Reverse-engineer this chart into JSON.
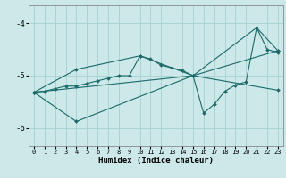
{
  "title": "",
  "xlabel": "Humidex (Indice chaleur)",
  "bg_color": "#cce8e8",
  "line_color": "#1a6b6b",
  "grid_color": "#aad4d4",
  "xlim": [
    -0.5,
    23.5
  ],
  "ylim": [
    -6.35,
    -3.65
  ],
  "yticks": [
    -6,
    -5,
    -4
  ],
  "xticks": [
    0,
    1,
    2,
    3,
    4,
    5,
    6,
    7,
    8,
    9,
    10,
    11,
    12,
    13,
    14,
    15,
    16,
    17,
    18,
    19,
    20,
    21,
    22,
    23
  ],
  "series1": [
    [
      0,
      -5.32
    ],
    [
      1,
      -5.3
    ],
    [
      2,
      -5.25
    ],
    [
      3,
      -5.2
    ],
    [
      4,
      -5.2
    ],
    [
      5,
      -5.15
    ],
    [
      6,
      -5.1
    ],
    [
      7,
      -5.05
    ],
    [
      8,
      -5.0
    ],
    [
      9,
      -5.0
    ],
    [
      10,
      -4.62
    ],
    [
      11,
      -4.68
    ],
    [
      12,
      -4.8
    ],
    [
      13,
      -4.85
    ],
    [
      14,
      -4.9
    ],
    [
      15,
      -5.0
    ],
    [
      16,
      -5.72
    ],
    [
      17,
      -5.55
    ],
    [
      18,
      -5.3
    ],
    [
      19,
      -5.18
    ],
    [
      20,
      -5.12
    ],
    [
      21,
      -4.08
    ],
    [
      22,
      -4.5
    ],
    [
      23,
      -4.55
    ]
  ],
  "series2": [
    [
      0,
      -5.32
    ],
    [
      4,
      -5.88
    ],
    [
      15,
      -5.0
    ],
    [
      23,
      -5.28
    ]
  ],
  "series3": [
    [
      0,
      -5.32
    ],
    [
      4,
      -4.88
    ],
    [
      10,
      -4.62
    ],
    [
      15,
      -5.0
    ],
    [
      23,
      -4.52
    ]
  ],
  "series4": [
    [
      0,
      -5.32
    ],
    [
      15,
      -5.0
    ],
    [
      21,
      -4.08
    ],
    [
      23,
      -4.52
    ]
  ]
}
